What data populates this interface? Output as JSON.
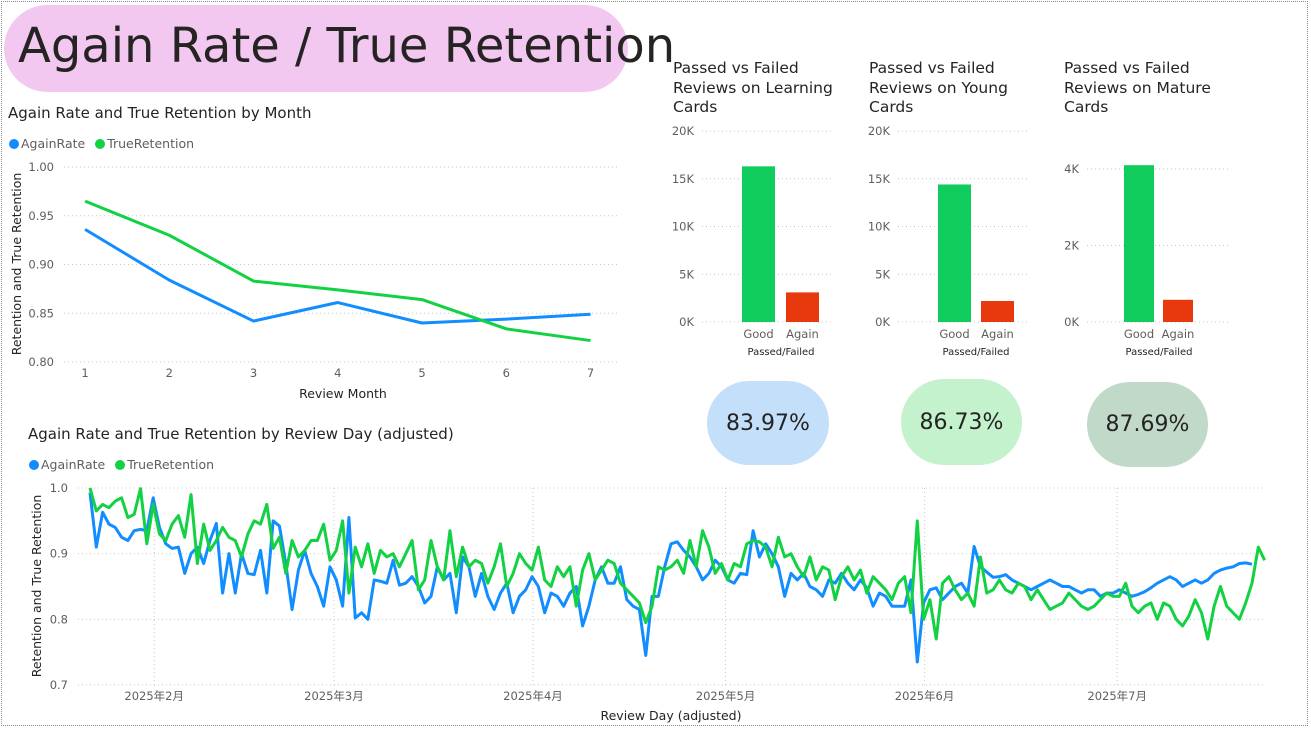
{
  "page": {
    "title": "Again Rate / True Retention"
  },
  "colors": {
    "title_pill": "#f2c8f0",
    "again_rate": "#118DFF",
    "true_retention": "#12D142",
    "good_bar": "#0FCC5C",
    "again_bar": "#E8380D",
    "kpi_learning": "#C4DFFA",
    "kpi_young": "#C3F2CC",
    "kpi_mature": "#C0D9C8"
  },
  "month_chart": {
    "title": "Again Rate and True Retention by Month",
    "legend": [
      "AgainRate",
      "TrueRetention"
    ]
  },
  "day_chart": {
    "title": "Again Rate and True Retention by Review Day (adjusted)",
    "legend": [
      "AgainRate",
      "TrueRetention"
    ]
  },
  "bar_titles": {
    "learning": "Passed vs Failed Reviews on Learning Cards",
    "young": "Passed vs Failed Reviews on Young Cards",
    "mature": "Passed vs Failed Reviews on Mature Cards"
  },
  "kpis": {
    "learning": "83.97%",
    "young": "86.73%",
    "mature": "87.69%"
  },
  "chart_data": [
    {
      "id": "month",
      "type": "line",
      "x": [
        1,
        2,
        3,
        4,
        5,
        6,
        7
      ],
      "series": [
        {
          "name": "AgainRate",
          "values": [
            0.936,
            0.884,
            0.842,
            0.861,
            0.84,
            0.844,
            0.849
          ]
        },
        {
          "name": "TrueRetention",
          "values": [
            0.965,
            0.93,
            0.883,
            0.874,
            0.864,
            0.834,
            0.822
          ]
        }
      ],
      "xlabel": "Review Month",
      "ylabel": "Retention and True Retention",
      "xlim": [
        0.75,
        7.35
      ],
      "ylim": [
        0.8,
        1.0
      ],
      "yticks": [
        0.8,
        0.85,
        0.9,
        0.95,
        1.0
      ],
      "ytick_labels": [
        "0.80",
        "0.85",
        "0.90",
        "0.95",
        "1.00"
      ],
      "xticks": [
        1,
        2,
        3,
        4,
        5,
        6,
        7
      ],
      "xtick_labels": [
        "1",
        "2",
        "3",
        "4",
        "5",
        "6",
        "7"
      ],
      "grid": true,
      "legend": "top-left"
    },
    {
      "id": "day",
      "type": "line",
      "x_start": "2025-01-22",
      "x_end": "2025-07-22",
      "series": [
        {
          "name": "AgainRate",
          "values": [
            0.993,
            0.91,
            0.963,
            0.945,
            0.94,
            0.925,
            0.92,
            0.935,
            0.937,
            0.935,
            0.985,
            0.94,
            0.915,
            0.908,
            0.91,
            0.87,
            0.9,
            0.91,
            0.885,
            0.92,
            0.946,
            0.84,
            0.9,
            0.84,
            0.9,
            0.87,
            0.868,
            0.905,
            0.84,
            0.95,
            0.942,
            0.885,
            0.815,
            0.875,
            0.905,
            0.87,
            0.85,
            0.82,
            0.88,
            0.86,
            0.82,
            0.955,
            0.802,
            0.81,
            0.8,
            0.86,
            0.858,
            0.855,
            0.89,
            0.852,
            0.855,
            0.865,
            0.85,
            0.825,
            0.835,
            0.88,
            0.86,
            0.87,
            0.81,
            0.895,
            0.88,
            0.835,
            0.87,
            0.835,
            0.815,
            0.84,
            0.855,
            0.81,
            0.835,
            0.845,
            0.865,
            0.85,
            0.81,
            0.84,
            0.835,
            0.82,
            0.84,
            0.85,
            0.79,
            0.82,
            0.86,
            0.88,
            0.855,
            0.855,
            0.88,
            0.83,
            0.82,
            0.815,
            0.745,
            0.835,
            0.835,
            0.88,
            0.915,
            0.918,
            0.905,
            0.895,
            0.88,
            0.86,
            0.87,
            0.89,
            0.88,
            0.86,
            0.855,
            0.87,
            0.868,
            0.935,
            0.895,
            0.915,
            0.9,
            0.88,
            0.835,
            0.87,
            0.86,
            0.87,
            0.85,
            0.845,
            0.835,
            0.86,
            0.855,
            0.87,
            0.855,
            0.845,
            0.86,
            0.848,
            0.82,
            0.84,
            0.835,
            0.82,
            0.82,
            0.82,
            0.86,
            0.735,
            0.825,
            0.845,
            0.848,
            0.83,
            0.84,
            0.85,
            0.855,
            0.84,
            0.911,
            0.88,
            0.872,
            0.864,
            0.865,
            0.868,
            0.86,
            0.855,
            0.85,
            0.845,
            0.85,
            0.855,
            0.86,
            0.855,
            0.85,
            0.85,
            0.845,
            0.84,
            0.845,
            0.845,
            0.835,
            0.84,
            0.84,
            0.845,
            0.84,
            0.835,
            0.838,
            0.842,
            0.848,
            0.855,
            0.86,
            0.865,
            0.86,
            0.85,
            0.855,
            0.86,
            0.855,
            0.86,
            0.87,
            0.875,
            0.878,
            0.88,
            0.885,
            0.886,
            0.884
          ]
        },
        {
          "name": "TrueRetention",
          "values": [
            1.0,
            0.965,
            0.975,
            0.97,
            0.98,
            0.985,
            0.955,
            0.96,
            0.999,
            0.915,
            0.975,
            0.93,
            0.92,
            0.945,
            0.958,
            0.925,
            0.99,
            0.885,
            0.945,
            0.905,
            0.92,
            0.94,
            0.925,
            0.92,
            0.895,
            0.93,
            0.95,
            0.945,
            0.975,
            0.908,
            0.925,
            0.87,
            0.92,
            0.895,
            0.905,
            0.92,
            0.92,
            0.945,
            0.89,
            0.905,
            0.95,
            0.84,
            0.91,
            0.88,
            0.915,
            0.87,
            0.905,
            0.895,
            0.9,
            0.88,
            0.9,
            0.92,
            0.845,
            0.86,
            0.92,
            0.88,
            0.86,
            0.935,
            0.865,
            0.91,
            0.88,
            0.89,
            0.885,
            0.855,
            0.88,
            0.915,
            0.85,
            0.87,
            0.9,
            0.885,
            0.875,
            0.91,
            0.86,
            0.85,
            0.88,
            0.865,
            0.88,
            0.82,
            0.875,
            0.9,
            0.86,
            0.875,
            0.89,
            0.885,
            0.855,
            0.845,
            0.835,
            0.825,
            0.795,
            0.82,
            0.88,
            0.875,
            0.88,
            0.89,
            0.87,
            0.92,
            0.88,
            0.935,
            0.91,
            0.87,
            0.885,
            0.86,
            0.885,
            0.88,
            0.915,
            0.92,
            0.918,
            0.91,
            0.88,
            0.925,
            0.895,
            0.9,
            0.88,
            0.865,
            0.895,
            0.86,
            0.88,
            0.875,
            0.83,
            0.865,
            0.88,
            0.86,
            0.875,
            0.84,
            0.865,
            0.855,
            0.845,
            0.83,
            0.855,
            0.865,
            0.81,
            0.95,
            0.8,
            0.83,
            0.77,
            0.855,
            0.865,
            0.845,
            0.83,
            0.84,
            0.82,
            0.895,
            0.84,
            0.845,
            0.86,
            0.845,
            0.84,
            0.855,
            0.85,
            0.83,
            0.845,
            0.83,
            0.815,
            0.82,
            0.825,
            0.84,
            0.83,
            0.82,
            0.815,
            0.82,
            0.83,
            0.84,
            0.835,
            0.835,
            0.855,
            0.82,
            0.81,
            0.82,
            0.825,
            0.8,
            0.825,
            0.82,
            0.8,
            0.79,
            0.805,
            0.83,
            0.81,
            0.77,
            0.82,
            0.85,
            0.82,
            0.81,
            0.8,
            0.825,
            0.855,
            0.91,
            0.89
          ]
        }
      ],
      "xlabel": "Review Day (adjusted)",
      "ylabel": "Retention and True Retention",
      "ylim": [
        0.7,
        1.0
      ],
      "yticks": [
        0.7,
        0.8,
        0.9,
        1.0
      ],
      "ytick_labels": [
        "0.7",
        "0.8",
        "0.9",
        "1.0"
      ],
      "xtick_labels": [
        "2025年2月",
        "2025年3月",
        "2025年4月",
        "2025年5月",
        "2025年6月",
        "2025年7月"
      ],
      "xtick_dates": [
        "2025-02-01",
        "2025-03-01",
        "2025-04-01",
        "2025-05-01",
        "2025-06-01",
        "2025-07-01"
      ],
      "grid": true,
      "legend": "top-left"
    },
    {
      "id": "learning",
      "type": "bar",
      "title": "Passed vs Failed Reviews on Learning Cards",
      "categories": [
        "Good",
        "Again"
      ],
      "values": [
        16300,
        3100
      ],
      "xlabel": "Passed/Failed",
      "ylim": [
        0,
        20000
      ],
      "yticks": [
        0,
        5000,
        10000,
        15000,
        20000
      ],
      "ytick_labels": [
        "0K",
        "5K",
        "10K",
        "15K",
        "20K"
      ]
    },
    {
      "id": "young",
      "type": "bar",
      "title": "Passed vs Failed Reviews on Young Cards",
      "categories": [
        "Good",
        "Again"
      ],
      "values": [
        14400,
        2200
      ],
      "xlabel": "Passed/Failed",
      "ylim": [
        0,
        20000
      ],
      "yticks": [
        0,
        5000,
        10000,
        15000,
        20000
      ],
      "ytick_labels": [
        "0K",
        "5K",
        "10K",
        "15K",
        "20K"
      ]
    },
    {
      "id": "mature",
      "type": "bar",
      "title": "Passed vs Failed Reviews on Mature Cards",
      "categories": [
        "Good",
        "Again"
      ],
      "values": [
        4100,
        580
      ],
      "xlabel": "Passed/Failed",
      "ylim": [
        0,
        4000
      ],
      "yticks": [
        0,
        2000,
        4000
      ],
      "ytick_labels": [
        "0K",
        "2K",
        "4K"
      ]
    }
  ]
}
